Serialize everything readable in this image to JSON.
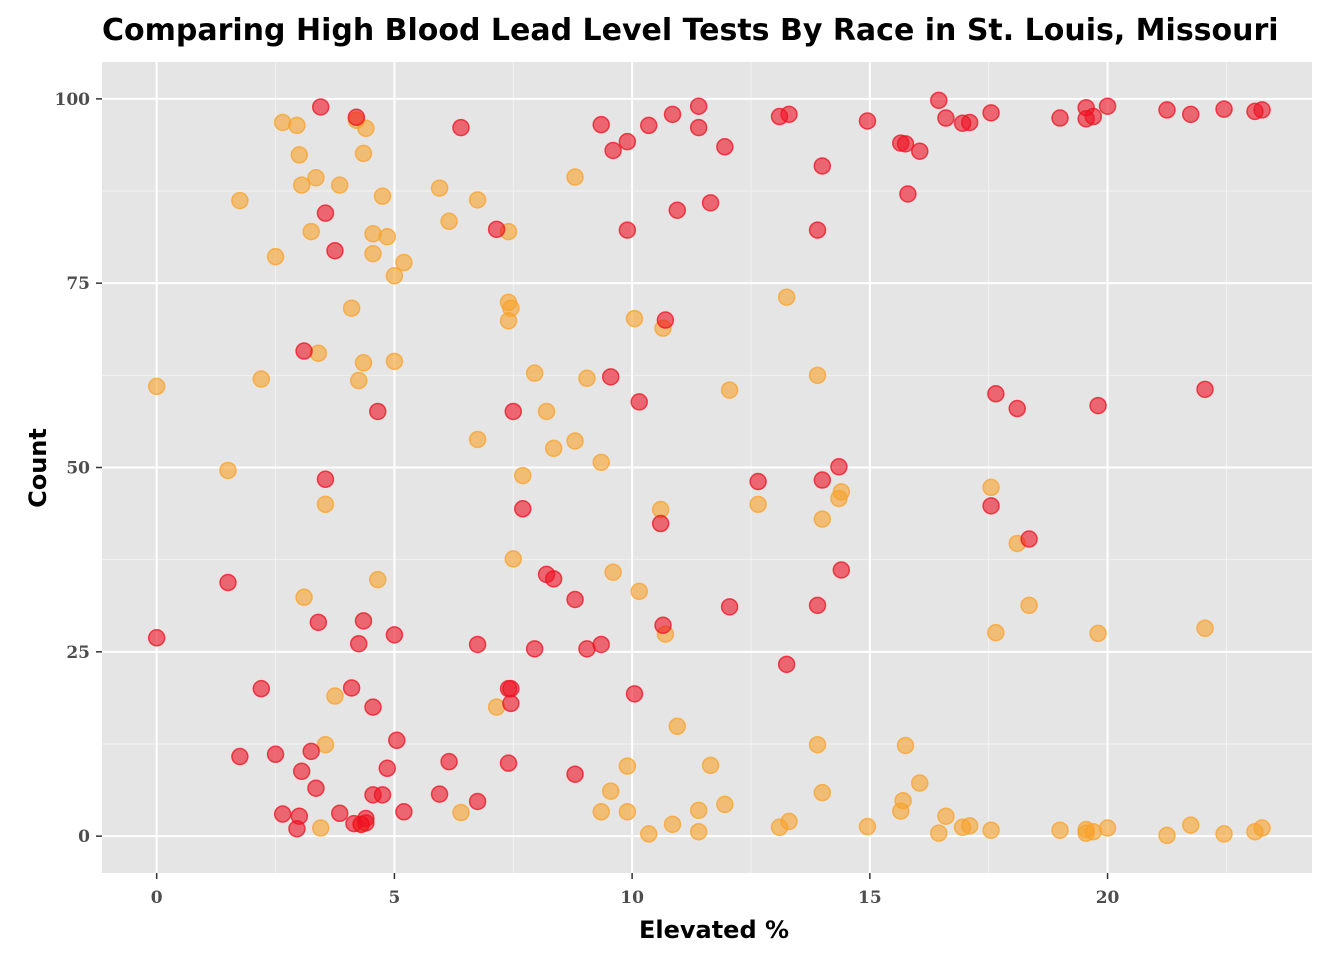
{
  "chart_data": {
    "type": "scatter",
    "title": "Comparing High Blood Lead Level Tests By Race in St. Louis, Missouri",
    "xlabel": "Elevated %",
    "ylabel": "Count",
    "xlim": [
      -1.15,
      24.3
    ],
    "ylim": [
      -5,
      105
    ],
    "x_ticks": [
      0,
      5,
      10,
      15,
      20
    ],
    "y_ticks": [
      0,
      25,
      50,
      75,
      100
    ],
    "x_tick_labels": [
      "0",
      "5",
      "10",
      "15",
      "20"
    ],
    "y_tick_labels": [
      "0",
      "25",
      "50",
      "75",
      "100"
    ],
    "grid": true,
    "legend": "none",
    "series": [
      {
        "color": "#f8a22a",
        "points": [
          [
            0,
            61
          ],
          [
            1.5,
            49.6
          ],
          [
            1.75,
            86.2
          ],
          [
            2.2,
            62
          ],
          [
            2.5,
            78.6
          ],
          [
            2.65,
            96.8
          ],
          [
            2.95,
            96.4
          ],
          [
            3.0,
            92.4
          ],
          [
            3.05,
            88.3
          ],
          [
            3.1,
            32.4
          ],
          [
            3.25,
            82
          ],
          [
            3.35,
            89.3
          ],
          [
            3.4,
            65.5
          ],
          [
            3.45,
            1.1
          ],
          [
            3.55,
            12.4
          ],
          [
            3.55,
            45
          ],
          [
            3.75,
            19
          ],
          [
            3.85,
            88.3
          ],
          [
            4.1,
            71.6
          ],
          [
            4.2,
            97.1
          ],
          [
            4.25,
            61.8
          ],
          [
            4.3,
            1.6
          ],
          [
            4.35,
            92.6
          ],
          [
            4.35,
            64.2
          ],
          [
            4.4,
            96
          ],
          [
            4.55,
            81.7
          ],
          [
            4.55,
            79
          ],
          [
            4.65,
            34.8
          ],
          [
            4.75,
            86.8
          ],
          [
            4.85,
            81.3
          ],
          [
            5.0,
            76
          ],
          [
            5.0,
            64.4
          ],
          [
            5.2,
            77.8
          ],
          [
            5.95,
            87.9
          ],
          [
            6.15,
            83.4
          ],
          [
            6.4,
            3.2
          ],
          [
            6.75,
            53.8
          ],
          [
            6.75,
            86.3
          ],
          [
            7.15,
            17.5
          ],
          [
            7.4,
            82
          ],
          [
            7.4,
            72.4
          ],
          [
            7.45,
            71.6
          ],
          [
            7.4,
            69.9
          ],
          [
            7.5,
            37.6
          ],
          [
            7.7,
            48.9
          ],
          [
            7.95,
            62.8
          ],
          [
            8.2,
            57.6
          ],
          [
            8.35,
            52.6
          ],
          [
            8.8,
            53.6
          ],
          [
            8.8,
            89.4
          ],
          [
            9.05,
            62.1
          ],
          [
            9.35,
            50.7
          ],
          [
            9.35,
            3.3
          ],
          [
            9.55,
            6.1
          ],
          [
            9.6,
            35.8
          ],
          [
            9.9,
            9.5
          ],
          [
            9.9,
            3.3
          ],
          [
            10.05,
            70.2
          ],
          [
            10.15,
            33.2
          ],
          [
            10.35,
            0.3
          ],
          [
            10.6,
            44.3
          ],
          [
            10.65,
            68.9
          ],
          [
            10.7,
            27.4
          ],
          [
            10.85,
            1.6
          ],
          [
            10.95,
            14.9
          ],
          [
            11.4,
            0.6
          ],
          [
            11.4,
            3.5
          ],
          [
            11.65,
            9.6
          ],
          [
            11.95,
            4.3
          ],
          [
            12.05,
            60.5
          ],
          [
            12.65,
            45
          ],
          [
            13.1,
            1.2
          ],
          [
            13.25,
            73.1
          ],
          [
            13.3,
            2
          ],
          [
            13.9,
            12.4
          ],
          [
            13.9,
            62.5
          ],
          [
            14.0,
            43
          ],
          [
            14.0,
            5.9
          ],
          [
            14.35,
            45.8
          ],
          [
            14.4,
            46.7
          ],
          [
            14.95,
            1.3
          ],
          [
            15.65,
            3.4
          ],
          [
            15.7,
            4.8
          ],
          [
            15.75,
            12.3
          ],
          [
            16.05,
            7.2
          ],
          [
            16.45,
            0.4
          ],
          [
            16.6,
            2.7
          ],
          [
            16.95,
            1.2
          ],
          [
            17.1,
            1.4
          ],
          [
            17.55,
            0.8
          ],
          [
            17.55,
            47.3
          ],
          [
            17.65,
            27.6
          ],
          [
            18.1,
            39.7
          ],
          [
            18.35,
            31.3
          ],
          [
            19.0,
            0.8
          ],
          [
            19.55,
            0.4
          ],
          [
            19.55,
            0.9
          ],
          [
            19.7,
            0.6
          ],
          [
            19.8,
            27.5
          ],
          [
            20.0,
            1.1
          ],
          [
            21.25,
            0.1
          ],
          [
            21.75,
            1.5
          ],
          [
            22.05,
            28.2
          ],
          [
            22.45,
            0.3
          ],
          [
            23.1,
            0.6
          ],
          [
            23.25,
            1.1
          ]
        ]
      },
      {
        "color": "#ee1122",
        "points": [
          [
            0,
            26.9
          ],
          [
            1.5,
            34.4
          ],
          [
            1.75,
            10.8
          ],
          [
            2.2,
            20
          ],
          [
            2.5,
            11.1
          ],
          [
            2.65,
            3
          ],
          [
            2.95,
            1
          ],
          [
            3.0,
            2.7
          ],
          [
            3.05,
            8.8
          ],
          [
            3.1,
            65.8
          ],
          [
            3.25,
            11.5
          ],
          [
            3.35,
            6.5
          ],
          [
            3.4,
            29
          ],
          [
            3.45,
            98.9
          ],
          [
            3.55,
            84.5
          ],
          [
            3.55,
            48.4
          ],
          [
            3.75,
            79.4
          ],
          [
            3.85,
            3.1
          ],
          [
            4.1,
            20.1
          ],
          [
            4.15,
            1.7
          ],
          [
            4.2,
            97.5
          ],
          [
            4.25,
            26.1
          ],
          [
            4.3,
            1.6
          ],
          [
            4.35,
            29.2
          ],
          [
            4.4,
            2.4
          ],
          [
            4.4,
            1.8
          ],
          [
            4.55,
            17.5
          ],
          [
            4.55,
            5.6
          ],
          [
            4.65,
            57.6
          ],
          [
            4.75,
            5.6
          ],
          [
            4.85,
            9.2
          ],
          [
            5.0,
            27.3
          ],
          [
            5.05,
            13
          ],
          [
            5.2,
            3.3
          ],
          [
            5.95,
            5.7
          ],
          [
            6.15,
            10.1
          ],
          [
            6.4,
            96.1
          ],
          [
            6.75,
            26
          ],
          [
            6.75,
            4.7
          ],
          [
            7.15,
            82.3
          ],
          [
            7.4,
            9.9
          ],
          [
            7.4,
            20
          ],
          [
            7.45,
            20
          ],
          [
            7.45,
            18
          ],
          [
            7.5,
            57.6
          ],
          [
            7.7,
            44.4
          ],
          [
            7.95,
            25.4
          ],
          [
            8.2,
            35.5
          ],
          [
            8.35,
            34.9
          ],
          [
            8.8,
            32.1
          ],
          [
            8.8,
            8.4
          ],
          [
            9.05,
            25.4
          ],
          [
            9.35,
            26
          ],
          [
            9.35,
            96.5
          ],
          [
            9.55,
            62.3
          ],
          [
            9.6,
            93
          ],
          [
            9.9,
            94.2
          ],
          [
            9.9,
            82.2
          ],
          [
            10.05,
            19.3
          ],
          [
            10.15,
            58.9
          ],
          [
            10.35,
            96.4
          ],
          [
            10.6,
            42.4
          ],
          [
            10.65,
            28.6
          ],
          [
            10.7,
            70
          ],
          [
            10.85,
            97.9
          ],
          [
            10.95,
            84.9
          ],
          [
            11.4,
            99
          ],
          [
            11.4,
            96.1
          ],
          [
            11.65,
            85.9
          ],
          [
            11.95,
            93.5
          ],
          [
            12.05,
            31.1
          ],
          [
            12.65,
            48.1
          ],
          [
            13.1,
            97.6
          ],
          [
            13.25,
            23.3
          ],
          [
            13.3,
            97.9
          ],
          [
            13.9,
            31.3
          ],
          [
            13.9,
            82.2
          ],
          [
            14.0,
            48.3
          ],
          [
            14.0,
            90.9
          ],
          [
            14.35,
            50.1
          ],
          [
            14.4,
            36.1
          ],
          [
            14.95,
            97
          ],
          [
            15.65,
            94
          ],
          [
            15.75,
            93.9
          ],
          [
            15.8,
            87.1
          ],
          [
            16.05,
            92.9
          ],
          [
            16.45,
            99.8
          ],
          [
            16.6,
            97.4
          ],
          [
            16.95,
            96.7
          ],
          [
            17.1,
            96.8
          ],
          [
            17.55,
            98.1
          ],
          [
            17.55,
            44.8
          ],
          [
            17.65,
            60
          ],
          [
            18.1,
            58
          ],
          [
            18.35,
            40.3
          ],
          [
            19.0,
            97.4
          ],
          [
            19.55,
            98.8
          ],
          [
            19.55,
            97.3
          ],
          [
            19.7,
            97.6
          ],
          [
            19.8,
            58.4
          ],
          [
            20.0,
            99
          ],
          [
            21.25,
            98.5
          ],
          [
            21.75,
            97.9
          ],
          [
            22.05,
            60.6
          ],
          [
            22.45,
            98.6
          ],
          [
            23.1,
            98.3
          ],
          [
            23.25,
            98.5
          ]
        ]
      }
    ]
  }
}
